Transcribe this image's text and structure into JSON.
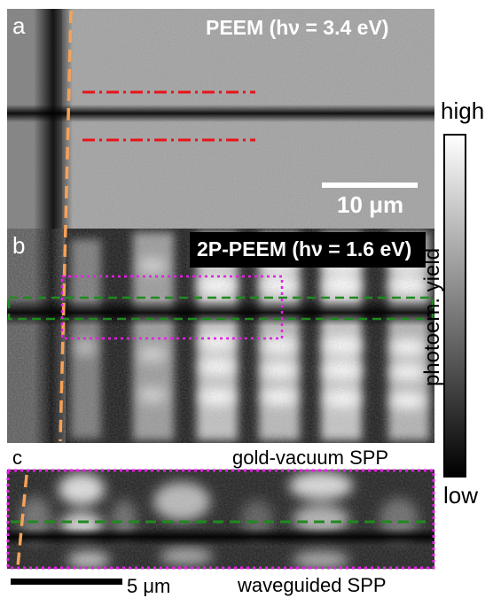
{
  "panels": {
    "a": {
      "letter": "a",
      "title": "PEEM (hν = 3.4 eV)",
      "scalebar_label": "10 μm"
    },
    "b": {
      "letter": "b",
      "title": "2P-PEEM (hν = 1.6 eV)"
    },
    "c": {
      "letter": "c",
      "caption_top": "gold-vacuum SPP",
      "caption_bottom": "waveguided SPP",
      "scalebar_label": "5 μm"
    }
  },
  "colorbar": {
    "label": "photoem. yield",
    "high_label": "high",
    "low_label": "low",
    "gradient_top": "#ffffff",
    "gradient_bottom": "#000000"
  },
  "colors": {
    "red_dashdot": "#e8141a",
    "orange_dash": "#f7a157",
    "green_dash": "#1f8a1f",
    "magenta_dotted": "#e61ee6",
    "title_bg": "#000000",
    "title_fg": "#ffffff"
  }
}
